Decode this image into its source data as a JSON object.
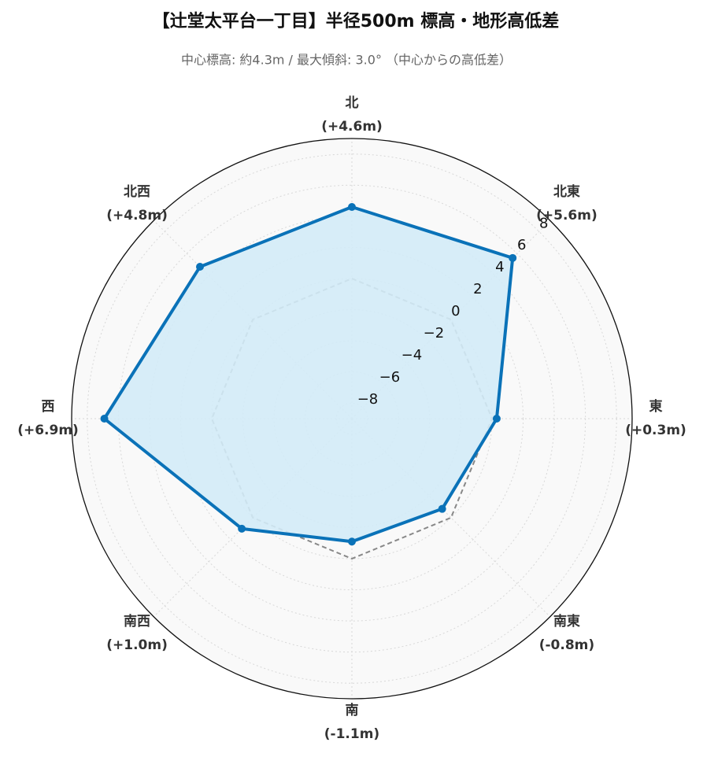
{
  "chart_data": {
    "type": "radar",
    "title": "【辻堂太平台一丁目】半径500m 標高・地形高低差",
    "subtitle": "中心標高: 約4.3m / 最大傾斜: 3.0° （中心からの高低差）",
    "categories": [
      "北",
      "北東",
      "東",
      "南東",
      "南",
      "南西",
      "西",
      "北西"
    ],
    "values": [
      4.6,
      5.6,
      0.3,
      -0.8,
      -1.1,
      1.0,
      6.9,
      4.8
    ],
    "value_labels": [
      "(+4.6m)",
      "(+5.6m)",
      "(+0.3m)",
      "(-0.8m)",
      "(-1.1m)",
      "(+1.0m)",
      "(+6.9m)",
      "(+4.8m)"
    ],
    "color": "#0a72b8",
    "fill_color": "#d3ebf7",
    "baseline": 0,
    "ylim": [
      -9,
      9
    ],
    "yticks": [
      {
        "value": -8,
        "label": "−8"
      },
      {
        "value": -6,
        "label": "−6"
      },
      {
        "value": -4,
        "label": "−4"
      },
      {
        "value": -2,
        "label": "−2"
      },
      0,
      2,
      4,
      6,
      8
    ],
    "grid": true
  }
}
